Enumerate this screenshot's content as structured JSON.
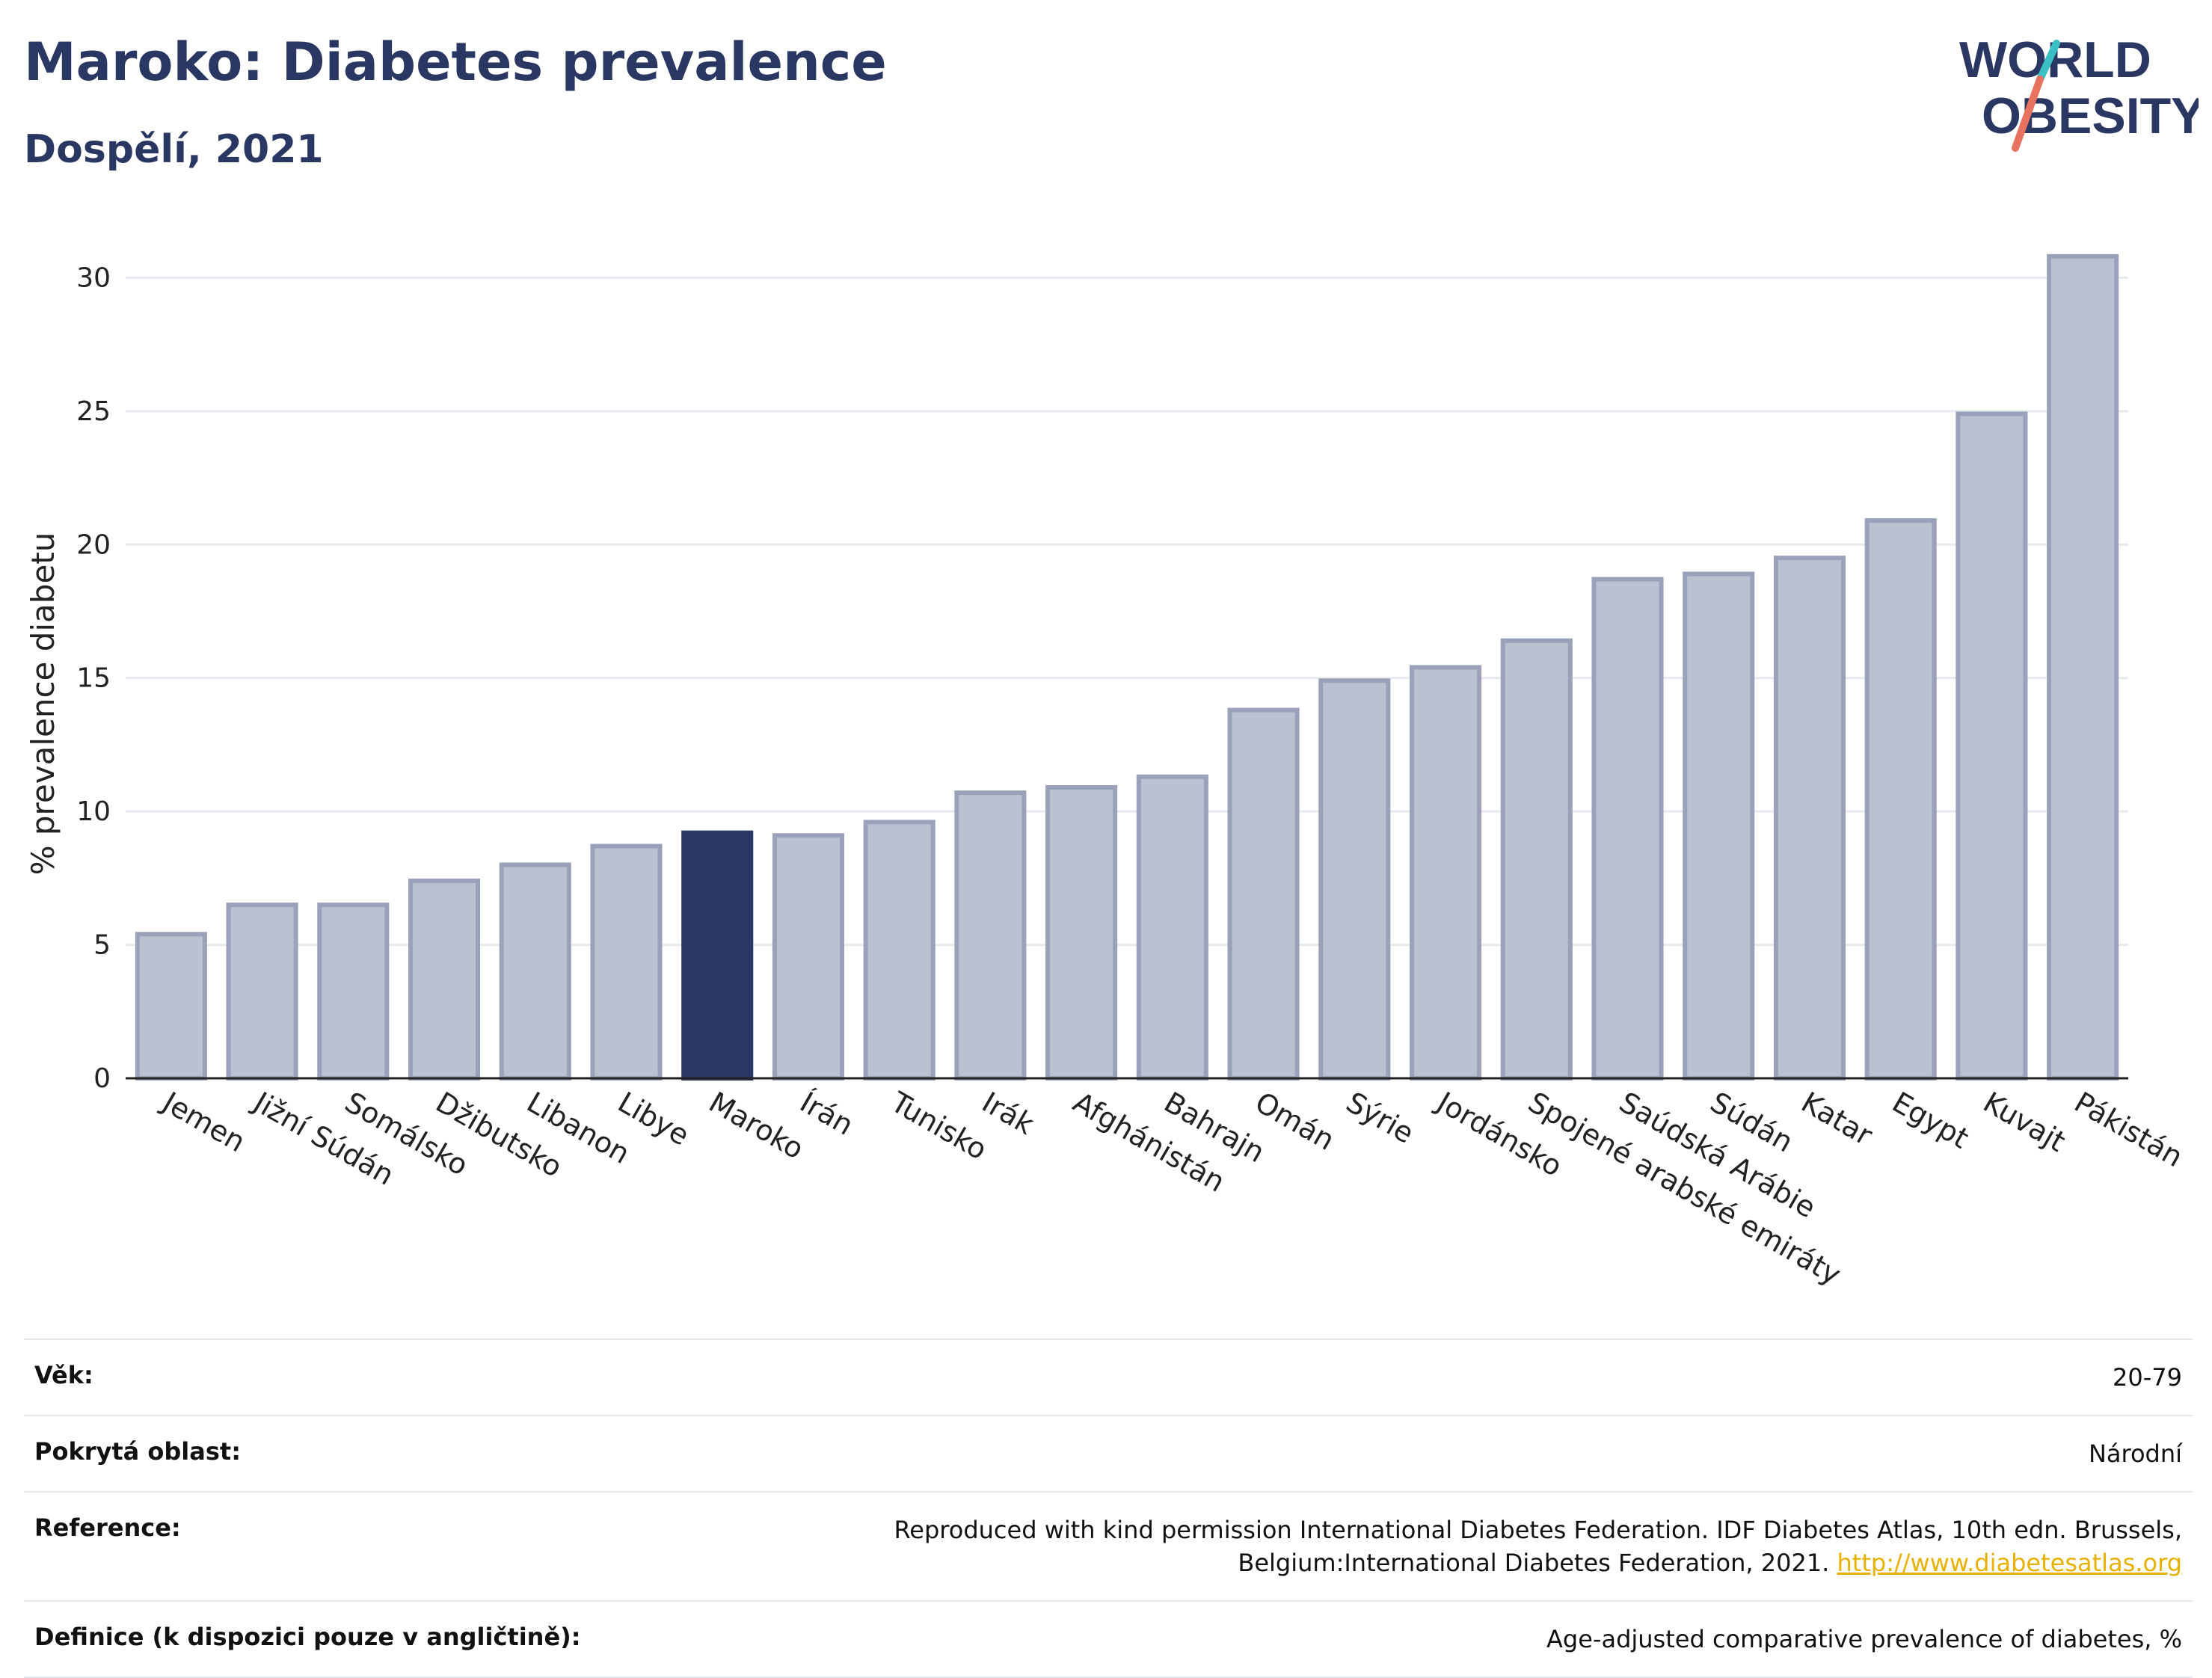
{
  "header": {
    "title": "Maroko: Diabetes prevalence",
    "subtitle": "Dospělí, 2021"
  },
  "logo": {
    "line1": "WORLD",
    "line2": "OBESITY",
    "colors": {
      "text": "#2b3763",
      "teal": "#3bbfc4",
      "coral": "#e8725f"
    }
  },
  "colors": {
    "highlight": "#2b3763",
    "bar_fill": "#bcc1d1",
    "bar_stroke": "#9aa1b8",
    "grid": "#e6e9ef",
    "axis": "#222222"
  },
  "chart_data": {
    "type": "bar",
    "title": "",
    "xlabel": "",
    "ylabel": "% prevalence diabetu",
    "ylim": [
      0,
      32
    ],
    "yticks": [
      0,
      5,
      10,
      15,
      20,
      25,
      30
    ],
    "grid": true,
    "highlight_category": "Maroko",
    "categories": [
      "Jemen",
      "Jižní Súdán",
      "Somálsko",
      "Džibutsko",
      "Libanon",
      "Libye",
      "Maroko",
      "Írán",
      "Tunisko",
      "Irák",
      "Afghánistán",
      "Bahrajn",
      "Omán",
      "Sýrie",
      "Jordánsko",
      "Spojené arabské emiráty",
      "Saúdská Arábie",
      "Súdán",
      "Katar",
      "Egypt",
      "Kuvajt",
      "Pákistán"
    ],
    "values": [
      5.4,
      6.5,
      6.5,
      7.4,
      8.0,
      8.7,
      9.2,
      9.1,
      9.6,
      10.7,
      10.9,
      11.3,
      13.8,
      14.9,
      15.4,
      16.4,
      18.7,
      18.9,
      19.5,
      20.9,
      24.9,
      30.8
    ]
  },
  "info": {
    "age_label": "Věk:",
    "age_value": "20-79",
    "coverage_label": "Pokrytá oblast:",
    "coverage_value": "Národní",
    "reference_label": "Reference:",
    "reference_value": "Reproduced with kind permission International Diabetes Federation.  IDF Diabetes Atlas, 10th edn. Brussels, Belgium:International Diabetes Federation, 2021.",
    "reference_link": "http://www.diabetesatlas.org",
    "definition_label": "Definice (k dispozici pouze v angličtině):",
    "definition_value": "Age-adjusted comparative prevalence of diabetes, %"
  }
}
